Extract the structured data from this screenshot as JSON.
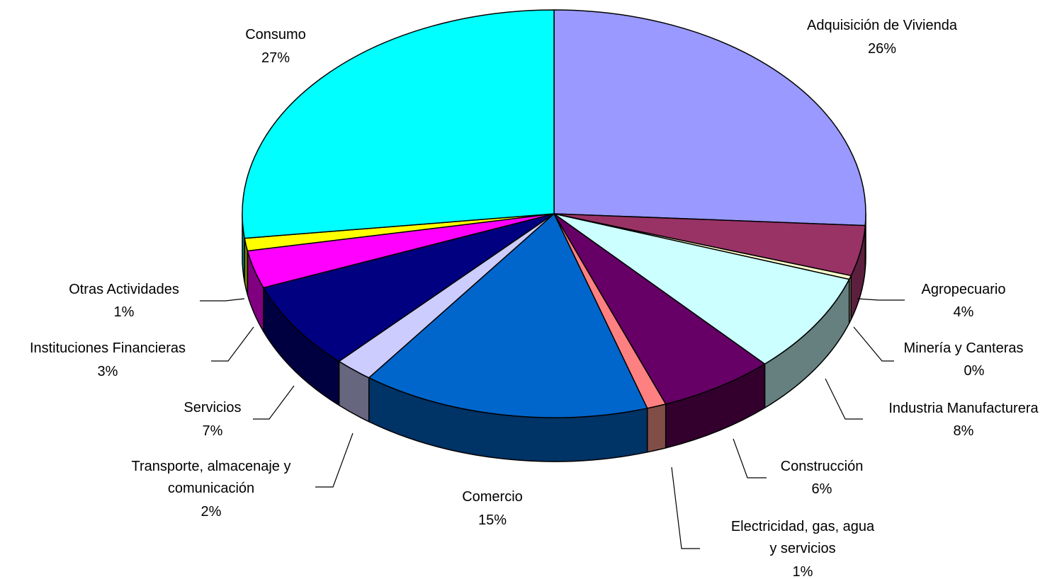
{
  "chart_data": {
    "type": "pie",
    "title": "",
    "slices": [
      {
        "label": "Adquisición de Vivienda",
        "value_label": "26%",
        "value": 26,
        "color": "#9999FF",
        "side_color": "#5C5C99"
      },
      {
        "label": "Agropecuario",
        "value_label": "4%",
        "value": 4,
        "color": "#993366",
        "side_color": "#5C1F3D"
      },
      {
        "label": "Minería y Canteras",
        "value_label": "0%",
        "value": 0.3,
        "color": "#FFFFCC",
        "side_color": "#99997A"
      },
      {
        "label": "Industria Manufacturera",
        "value_label": "8%",
        "value": 8,
        "color": "#CCFFFF",
        "side_color": "#668080"
      },
      {
        "label": "Construcción",
        "value_label": "6%",
        "value": 6,
        "color": "#660066",
        "side_color": "#33002E"
      },
      {
        "label": "Electricidad, gas, agua y servicios",
        "value_label": "1%",
        "value": 1,
        "color": "#FF8080",
        "side_color": "#804D47"
      },
      {
        "label": "Comercio",
        "value_label": "15%",
        "value": 15,
        "color": "#0066CC",
        "side_color": "#003366"
      },
      {
        "label": "Transporte, almacenaje y comunicación",
        "value_label": "2%",
        "value": 2,
        "color": "#CCCCFF",
        "side_color": "#66667F"
      },
      {
        "label": "Servicios",
        "value_label": "7%",
        "value": 7,
        "color": "#000080",
        "side_color": "#000040"
      },
      {
        "label": "Instituciones Financieras",
        "value_label": "3%",
        "value": 3,
        "color": "#FF00FF",
        "side_color": "#800080"
      },
      {
        "label": "Otras Actividades",
        "value_label": "1%",
        "value": 1,
        "color": "#FFFF00",
        "side_color": "#808000"
      },
      {
        "label": "Consumo",
        "value_label": "27%",
        "value": 27,
        "color": "#00FFFF",
        "side_color": "#008080"
      }
    ]
  }
}
